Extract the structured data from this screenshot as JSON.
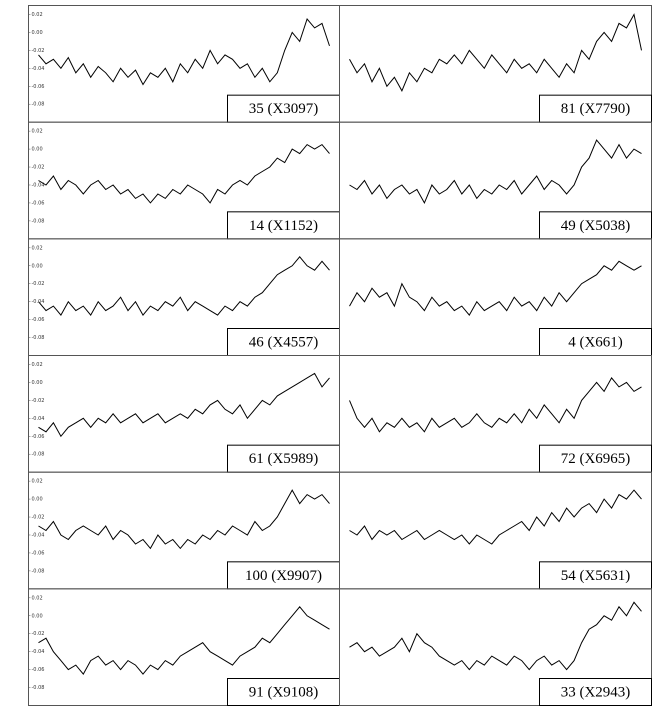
{
  "chart_data": [
    {
      "type": "line",
      "label": "35 (X3097)",
      "color": "#000000",
      "ylim": [
        -0.1,
        0.03
      ],
      "yticks": [
        0.02,
        {
          "value": 0,
          "label": "0.00"
        },
        -0.02,
        -0.04,
        -0.06,
        -0.08
      ],
      "values": [
        -0.025,
        -0.035,
        -0.03,
        -0.04,
        -0.028,
        -0.045,
        -0.035,
        -0.05,
        -0.038,
        -0.045,
        -0.055,
        -0.04,
        -0.05,
        -0.042,
        -0.058,
        -0.045,
        -0.05,
        -0.04,
        -0.055,
        -0.035,
        -0.045,
        -0.03,
        -0.04,
        -0.02,
        -0.035,
        -0.025,
        -0.03,
        -0.04,
        -0.035,
        -0.05,
        -0.04,
        -0.055,
        -0.045,
        -0.02,
        0.0,
        -0.01,
        0.015,
        0.005,
        0.01,
        -0.015
      ]
    },
    {
      "type": "line",
      "label": "81 (X7790)",
      "color": "#000000",
      "ylim": [
        -0.1,
        0.03
      ],
      "values": [
        -0.03,
        -0.045,
        -0.035,
        -0.055,
        -0.04,
        -0.06,
        -0.05,
        -0.065,
        -0.045,
        -0.055,
        -0.04,
        -0.045,
        -0.03,
        -0.035,
        -0.025,
        -0.035,
        -0.02,
        -0.03,
        -0.04,
        -0.025,
        -0.035,
        -0.045,
        -0.03,
        -0.04,
        -0.035,
        -0.045,
        -0.03,
        -0.04,
        -0.05,
        -0.035,
        -0.045,
        -0.02,
        -0.03,
        -0.01,
        0.0,
        -0.01,
        0.01,
        0.005,
        0.02,
        -0.02
      ]
    },
    {
      "type": "line",
      "label": "14 (X1152)",
      "color": "#000000",
      "ylim": [
        -0.1,
        0.03
      ],
      "yticks": [
        0.02,
        {
          "value": 0,
          "label": "0.00"
        },
        -0.02,
        -0.04,
        -0.06,
        -0.08
      ],
      "values": [
        -0.035,
        -0.04,
        -0.03,
        -0.045,
        -0.035,
        -0.04,
        -0.05,
        -0.04,
        -0.035,
        -0.045,
        -0.04,
        -0.05,
        -0.045,
        -0.055,
        -0.05,
        -0.06,
        -0.05,
        -0.055,
        -0.045,
        -0.05,
        -0.04,
        -0.045,
        -0.05,
        -0.06,
        -0.045,
        -0.05,
        -0.04,
        -0.035,
        -0.04,
        -0.03,
        -0.025,
        -0.02,
        -0.01,
        -0.015,
        0.0,
        -0.005,
        0.005,
        0.0,
        0.005,
        -0.005
      ]
    },
    {
      "type": "line",
      "label": "49 (X5038)",
      "color": "#000000",
      "ylim": [
        -0.1,
        0.03
      ],
      "values": [
        -0.04,
        -0.045,
        -0.035,
        -0.05,
        -0.04,
        -0.055,
        -0.045,
        -0.04,
        -0.05,
        -0.045,
        -0.06,
        -0.04,
        -0.05,
        -0.045,
        -0.035,
        -0.05,
        -0.04,
        -0.055,
        -0.045,
        -0.05,
        -0.04,
        -0.045,
        -0.035,
        -0.05,
        -0.04,
        -0.03,
        -0.045,
        -0.035,
        -0.04,
        -0.05,
        -0.04,
        -0.02,
        -0.01,
        0.01,
        0.0,
        -0.01,
        0.005,
        -0.01,
        0.0,
        -0.005
      ]
    },
    {
      "type": "line",
      "label": "46 (X4557)",
      "color": "#000000",
      "ylim": [
        -0.1,
        0.03
      ],
      "yticks": [
        0.02,
        {
          "value": 0,
          "label": "0.00"
        },
        -0.02,
        -0.04,
        -0.06,
        -0.08
      ],
      "values": [
        -0.04,
        -0.05,
        -0.045,
        -0.055,
        -0.04,
        -0.05,
        -0.045,
        -0.055,
        -0.04,
        -0.05,
        -0.045,
        -0.035,
        -0.05,
        -0.04,
        -0.055,
        -0.045,
        -0.05,
        -0.04,
        -0.045,
        -0.035,
        -0.05,
        -0.04,
        -0.045,
        -0.05,
        -0.055,
        -0.045,
        -0.05,
        -0.04,
        -0.045,
        -0.035,
        -0.03,
        -0.02,
        -0.01,
        -0.005,
        0.0,
        0.01,
        0.0,
        -0.005,
        0.005,
        -0.005
      ]
    },
    {
      "type": "line",
      "label": "4 (X661)",
      "color": "#000000",
      "ylim": [
        -0.1,
        0.03
      ],
      "values": [
        -0.045,
        -0.03,
        -0.04,
        -0.025,
        -0.035,
        -0.03,
        -0.045,
        -0.02,
        -0.035,
        -0.04,
        -0.05,
        -0.035,
        -0.045,
        -0.04,
        -0.05,
        -0.045,
        -0.055,
        -0.04,
        -0.05,
        -0.045,
        -0.04,
        -0.05,
        -0.035,
        -0.045,
        -0.04,
        -0.05,
        -0.035,
        -0.045,
        -0.03,
        -0.04,
        -0.03,
        -0.02,
        -0.015,
        -0.01,
        0.0,
        -0.005,
        0.005,
        0.0,
        -0.005,
        0.0
      ]
    },
    {
      "type": "line",
      "label": "61 (X5989)",
      "color": "#000000",
      "ylim": [
        -0.1,
        0.03
      ],
      "yticks": [
        0.02,
        {
          "value": 0,
          "label": "0.00"
        },
        -0.02,
        -0.04,
        -0.06,
        -0.08
      ],
      "values": [
        -0.05,
        -0.055,
        -0.045,
        -0.06,
        -0.05,
        -0.045,
        -0.04,
        -0.05,
        -0.04,
        -0.045,
        -0.035,
        -0.045,
        -0.04,
        -0.035,
        -0.045,
        -0.04,
        -0.035,
        -0.045,
        -0.04,
        -0.035,
        -0.04,
        -0.03,
        -0.035,
        -0.025,
        -0.02,
        -0.03,
        -0.035,
        -0.025,
        -0.04,
        -0.03,
        -0.02,
        -0.025,
        -0.015,
        -0.01,
        -0.005,
        0.0,
        0.005,
        0.01,
        -0.005,
        0.005
      ]
    },
    {
      "type": "line",
      "label": "72 (X6965)",
      "color": "#000000",
      "ylim": [
        -0.1,
        0.03
      ],
      "values": [
        -0.02,
        -0.04,
        -0.05,
        -0.04,
        -0.055,
        -0.045,
        -0.05,
        -0.04,
        -0.05,
        -0.045,
        -0.055,
        -0.04,
        -0.05,
        -0.045,
        -0.04,
        -0.05,
        -0.045,
        -0.035,
        -0.045,
        -0.05,
        -0.04,
        -0.045,
        -0.035,
        -0.045,
        -0.03,
        -0.04,
        -0.025,
        -0.035,
        -0.045,
        -0.03,
        -0.04,
        -0.02,
        -0.01,
        0.0,
        -0.01,
        0.005,
        -0.005,
        0.0,
        -0.01,
        -0.005
      ]
    },
    {
      "type": "line",
      "label": "100 (X9907)",
      "color": "#000000",
      "ylim": [
        -0.1,
        0.03
      ],
      "yticks": [
        0.02,
        {
          "value": 0,
          "label": "0.00"
        },
        -0.02,
        -0.04,
        -0.06,
        -0.08
      ],
      "values": [
        -0.03,
        -0.035,
        -0.025,
        -0.04,
        -0.045,
        -0.035,
        -0.03,
        -0.035,
        -0.04,
        -0.03,
        -0.045,
        -0.035,
        -0.04,
        -0.05,
        -0.045,
        -0.055,
        -0.04,
        -0.05,
        -0.045,
        -0.055,
        -0.045,
        -0.05,
        -0.04,
        -0.045,
        -0.035,
        -0.04,
        -0.03,
        -0.035,
        -0.04,
        -0.025,
        -0.035,
        -0.03,
        -0.02,
        -0.005,
        0.01,
        -0.005,
        0.005,
        0.0,
        0.005,
        -0.005
      ]
    },
    {
      "type": "line",
      "label": "54 (X5631)",
      "color": "#000000",
      "ylim": [
        -0.1,
        0.03
      ],
      "values": [
        -0.035,
        -0.04,
        -0.03,
        -0.045,
        -0.035,
        -0.04,
        -0.035,
        -0.045,
        -0.04,
        -0.035,
        -0.045,
        -0.04,
        -0.035,
        -0.04,
        -0.045,
        -0.04,
        -0.05,
        -0.04,
        -0.045,
        -0.05,
        -0.04,
        -0.035,
        -0.03,
        -0.025,
        -0.035,
        -0.02,
        -0.03,
        -0.015,
        -0.025,
        -0.01,
        -0.02,
        -0.01,
        -0.005,
        -0.015,
        0.0,
        -0.01,
        0.005,
        0.0,
        0.01,
        0.0
      ]
    },
    {
      "type": "line",
      "label": "91 (X9108)",
      "color": "#000000",
      "ylim": [
        -0.1,
        0.03
      ],
      "yticks": [
        0.02,
        {
          "value": 0,
          "label": "0.00"
        },
        -0.02,
        -0.04,
        -0.06,
        -0.08
      ],
      "values": [
        -0.03,
        -0.025,
        -0.04,
        -0.05,
        -0.06,
        -0.055,
        -0.065,
        -0.05,
        -0.045,
        -0.055,
        -0.05,
        -0.06,
        -0.05,
        -0.055,
        -0.065,
        -0.055,
        -0.06,
        -0.05,
        -0.055,
        -0.045,
        -0.04,
        -0.035,
        -0.03,
        -0.04,
        -0.045,
        -0.05,
        -0.055,
        -0.045,
        -0.04,
        -0.035,
        -0.025,
        -0.03,
        -0.02,
        -0.01,
        0.0,
        0.01,
        0.0,
        -0.005,
        -0.01,
        -0.015
      ]
    },
    {
      "type": "line",
      "label": "33 (X2943)",
      "color": "#000000",
      "ylim": [
        -0.1,
        0.03
      ],
      "values": [
        -0.035,
        -0.03,
        -0.04,
        -0.035,
        -0.045,
        -0.04,
        -0.035,
        -0.025,
        -0.04,
        -0.02,
        -0.03,
        -0.035,
        -0.045,
        -0.05,
        -0.055,
        -0.05,
        -0.06,
        -0.05,
        -0.055,
        -0.045,
        -0.05,
        -0.055,
        -0.045,
        -0.05,
        -0.06,
        -0.05,
        -0.045,
        -0.055,
        -0.05,
        -0.06,
        -0.05,
        -0.03,
        -0.015,
        -0.01,
        0.0,
        -0.005,
        0.01,
        0.0,
        0.015,
        0.005
      ]
    }
  ]
}
